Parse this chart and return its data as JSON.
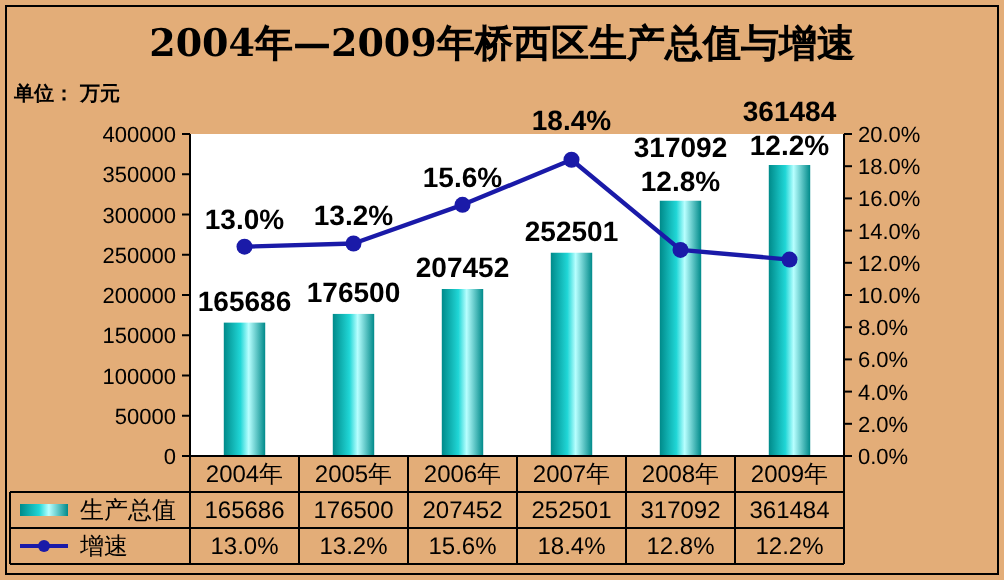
{
  "chart_data": {
    "type": "bar",
    "title": "2004年—2009年桥西区生产总值与增速",
    "ylabel": "单位： 万元",
    "categories": [
      "2004年",
      "2005年",
      "2006年",
      "2007年",
      "2008年",
      "2009年"
    ],
    "series": [
      {
        "name": "生产总值",
        "color": "#20d6d6",
        "values": [
          165686,
          176500,
          207452,
          252501,
          317092,
          361484
        ],
        "value_labels": [
          "165686",
          "176500",
          "207452",
          "252501",
          "317092",
          "361484"
        ]
      },
      {
        "name": "增速",
        "type": "line",
        "axis": "y2",
        "color": "#1a1aa8",
        "values": [
          13.0,
          13.2,
          15.6,
          18.4,
          12.8,
          12.2
        ],
        "value_labels": [
          "13.0%",
          "13.2%",
          "15.6%",
          "18.4%",
          "12.8%",
          "12.2%"
        ]
      }
    ],
    "ylim": [
      0,
      400000
    ],
    "yticks": [
      0,
      50000,
      100000,
      150000,
      200000,
      250000,
      300000,
      350000,
      400000
    ],
    "y2lim": [
      0,
      20
    ],
    "y2ticks": [
      {
        "value": 0,
        "label": "0.0%"
      },
      {
        "value": 2,
        "label": "2.0%"
      },
      {
        "value": 4,
        "label": "4.0%"
      },
      {
        "value": 6,
        "label": "6.0%"
      },
      {
        "value": 8,
        "label": "8.0%"
      },
      {
        "value": 10,
        "label": "10.0%"
      },
      {
        "value": 12,
        "label": "12.0%"
      },
      {
        "value": 14,
        "label": "14.0%"
      },
      {
        "value": 16,
        "label": "16.0%"
      },
      {
        "value": 18,
        "label": "18.0%"
      },
      {
        "value": 20,
        "label": "20.0%"
      }
    ],
    "marker": "circle",
    "legend": "bottom"
  }
}
